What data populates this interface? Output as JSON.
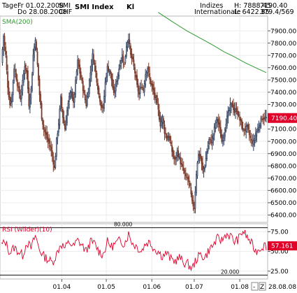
{
  "header": {
    "period_label": "Tage",
    "date_from": "Fr 01.02.2008",
    "date_to": "Do 28.08.2008",
    "symbol": "SMI",
    "currency": "CHF",
    "title": "SMI Index",
    "mode": "Kl",
    "source_line1": "Indizes",
    "source_line2": "Internationale",
    "high": "H: 7888.45",
    "low": "L: 6422.85",
    "last": "7190.40",
    "counter": "379.4/569"
  },
  "price_panel": {
    "indicator_label": "SMA(200)",
    "last_value_tag": "7190.40",
    "colors": {
      "sma": "#2e9a2e",
      "bull": "#2a3a5a",
      "bear": "#7a3a2a",
      "tag": "#e0002a"
    }
  },
  "rsi_panel": {
    "label": "RSI (Wilder)(10)",
    "upper_level_label": "80.000",
    "lower_level_label": "20.000",
    "last_value_tag": "57.161",
    "colors": {
      "line": "#e0002a",
      "tag": "#e0002a"
    }
  },
  "footer": {
    "zoom_minus": "-",
    "zoom_z": "Z",
    "end_date": "28.08.08"
  },
  "chart_data": [
    {
      "type": "candlestick",
      "title": "SMI Index",
      "y_ticks": [
        6400,
        6500,
        6600,
        6700,
        6800,
        6900,
        7000,
        7100,
        7200,
        7300,
        7400,
        7500,
        7600,
        7700,
        7800,
        7900
      ],
      "ylim": [
        6340,
        8020
      ],
      "x_ticks": [
        "01.04",
        "01.05",
        "01.06",
        "01.07",
        "01.08"
      ],
      "x_tick_days": [
        57,
        99,
        142,
        182,
        225
      ],
      "day_count": 250,
      "grid": true,
      "series": [
        {
          "name": "SMA(200)",
          "type": "line",
          "x": [
            148,
            160,
            175,
            190,
            200,
            210,
            220,
            230,
            240,
            250
          ],
          "y": [
            8050,
            7982,
            7900,
            7830,
            7782,
            7730,
            7688,
            7640,
            7600,
            7560
          ]
        },
        {
          "name": "price",
          "type": "line",
          "x": [
            0,
            2,
            4,
            6,
            8,
            10,
            12,
            14,
            16,
            18,
            20,
            22,
            24,
            26,
            28,
            30,
            32,
            34,
            36,
            38,
            40,
            42,
            44,
            46,
            48,
            50,
            52,
            54,
            56,
            58,
            60,
            62,
            64,
            66,
            68,
            70,
            72,
            74,
            76,
            78,
            80,
            82,
            84,
            86,
            88,
            90,
            92,
            94,
            96,
            98,
            100,
            102,
            104,
            106,
            108,
            110,
            112,
            114,
            116,
            118,
            120,
            122,
            124,
            126,
            128,
            130,
            132,
            134,
            136,
            138,
            140,
            142,
            144,
            146,
            148,
            150,
            152,
            154,
            156,
            158,
            160,
            162,
            164,
            166,
            168,
            170,
            172,
            174,
            176,
            178,
            180,
            182,
            184,
            186,
            188,
            190,
            192,
            194,
            196,
            198,
            200,
            202,
            204,
            206,
            208,
            210,
            212,
            214,
            216,
            218,
            220,
            222,
            224,
            226,
            228,
            230,
            232,
            234,
            236,
            238,
            240,
            242,
            244,
            246,
            248,
            250
          ],
          "y": [
            7640,
            7860,
            7700,
            7450,
            7300,
            7380,
            7600,
            7520,
            7420,
            7350,
            7480,
            7620,
            7560,
            7300,
            7420,
            7700,
            7840,
            7620,
            7380,
            7200,
            7100,
            7050,
            7000,
            6960,
            6880,
            6780,
            7000,
            7150,
            7350,
            7200,
            7100,
            7250,
            7350,
            7420,
            7300,
            7480,
            7650,
            7560,
            7480,
            7380,
            7300,
            7420,
            7560,
            7700,
            7620,
            7500,
            7380,
            7300,
            7260,
            7480,
            7600,
            7580,
            7500,
            7380,
            7460,
            7550,
            7640,
            7700,
            7620,
            7780,
            7850,
            7700,
            7650,
            7560,
            7450,
            7380,
            7460,
            7420,
            7550,
            7600,
            7500,
            7450,
            7380,
            7340,
            7250,
            7140,
            7190,
            7080,
            7030,
            7040,
            6960,
            6880,
            6840,
            6920,
            6860,
            6800,
            6760,
            6700,
            6700,
            6620,
            6500,
            6460,
            6740,
            6900,
            6860,
            6760,
            6800,
            6920,
            7010,
            7000,
            7050,
            7150,
            7180,
            7100,
            7000,
            7060,
            7160,
            7220,
            7280,
            7300,
            7240,
            7260,
            7200,
            7150,
            7090,
            7100,
            7110,
            7050,
            7000,
            6990,
            7060,
            7100,
            7150,
            7190,
            7190,
            7190
          ]
        }
      ]
    },
    {
      "type": "line",
      "title": "RSI (Wilder)(10)",
      "y_ticks": [
        25,
        50,
        75
      ],
      "ylim": [
        15,
        85
      ],
      "levels": [
        80,
        20
      ],
      "series": [
        {
          "name": "RSI (Wilder)(10)",
          "x": [
            0,
            4,
            8,
            12,
            16,
            20,
            24,
            28,
            32,
            36,
            40,
            44,
            48,
            52,
            56,
            60,
            64,
            68,
            72,
            76,
            80,
            84,
            88,
            92,
            96,
            100,
            104,
            108,
            112,
            116,
            120,
            124,
            128,
            132,
            136,
            140,
            144,
            148,
            152,
            156,
            160,
            164,
            168,
            172,
            176,
            180,
            184,
            188,
            192,
            196,
            200,
            204,
            208,
            212,
            216,
            220,
            224,
            228,
            232,
            236,
            240,
            244,
            248,
            250
          ],
          "y": [
            58,
            62,
            48,
            55,
            50,
            45,
            62,
            54,
            70,
            52,
            44,
            40,
            36,
            46,
            60,
            54,
            62,
            56,
            64,
            58,
            50,
            62,
            60,
            50,
            46,
            62,
            56,
            60,
            64,
            60,
            72,
            60,
            56,
            50,
            60,
            62,
            54,
            50,
            44,
            48,
            40,
            38,
            42,
            36,
            34,
            28,
            40,
            46,
            42,
            52,
            58,
            66,
            64,
            72,
            70,
            62,
            66,
            76,
            68,
            60,
            50,
            54,
            58,
            57
          ]
        }
      ]
    }
  ]
}
